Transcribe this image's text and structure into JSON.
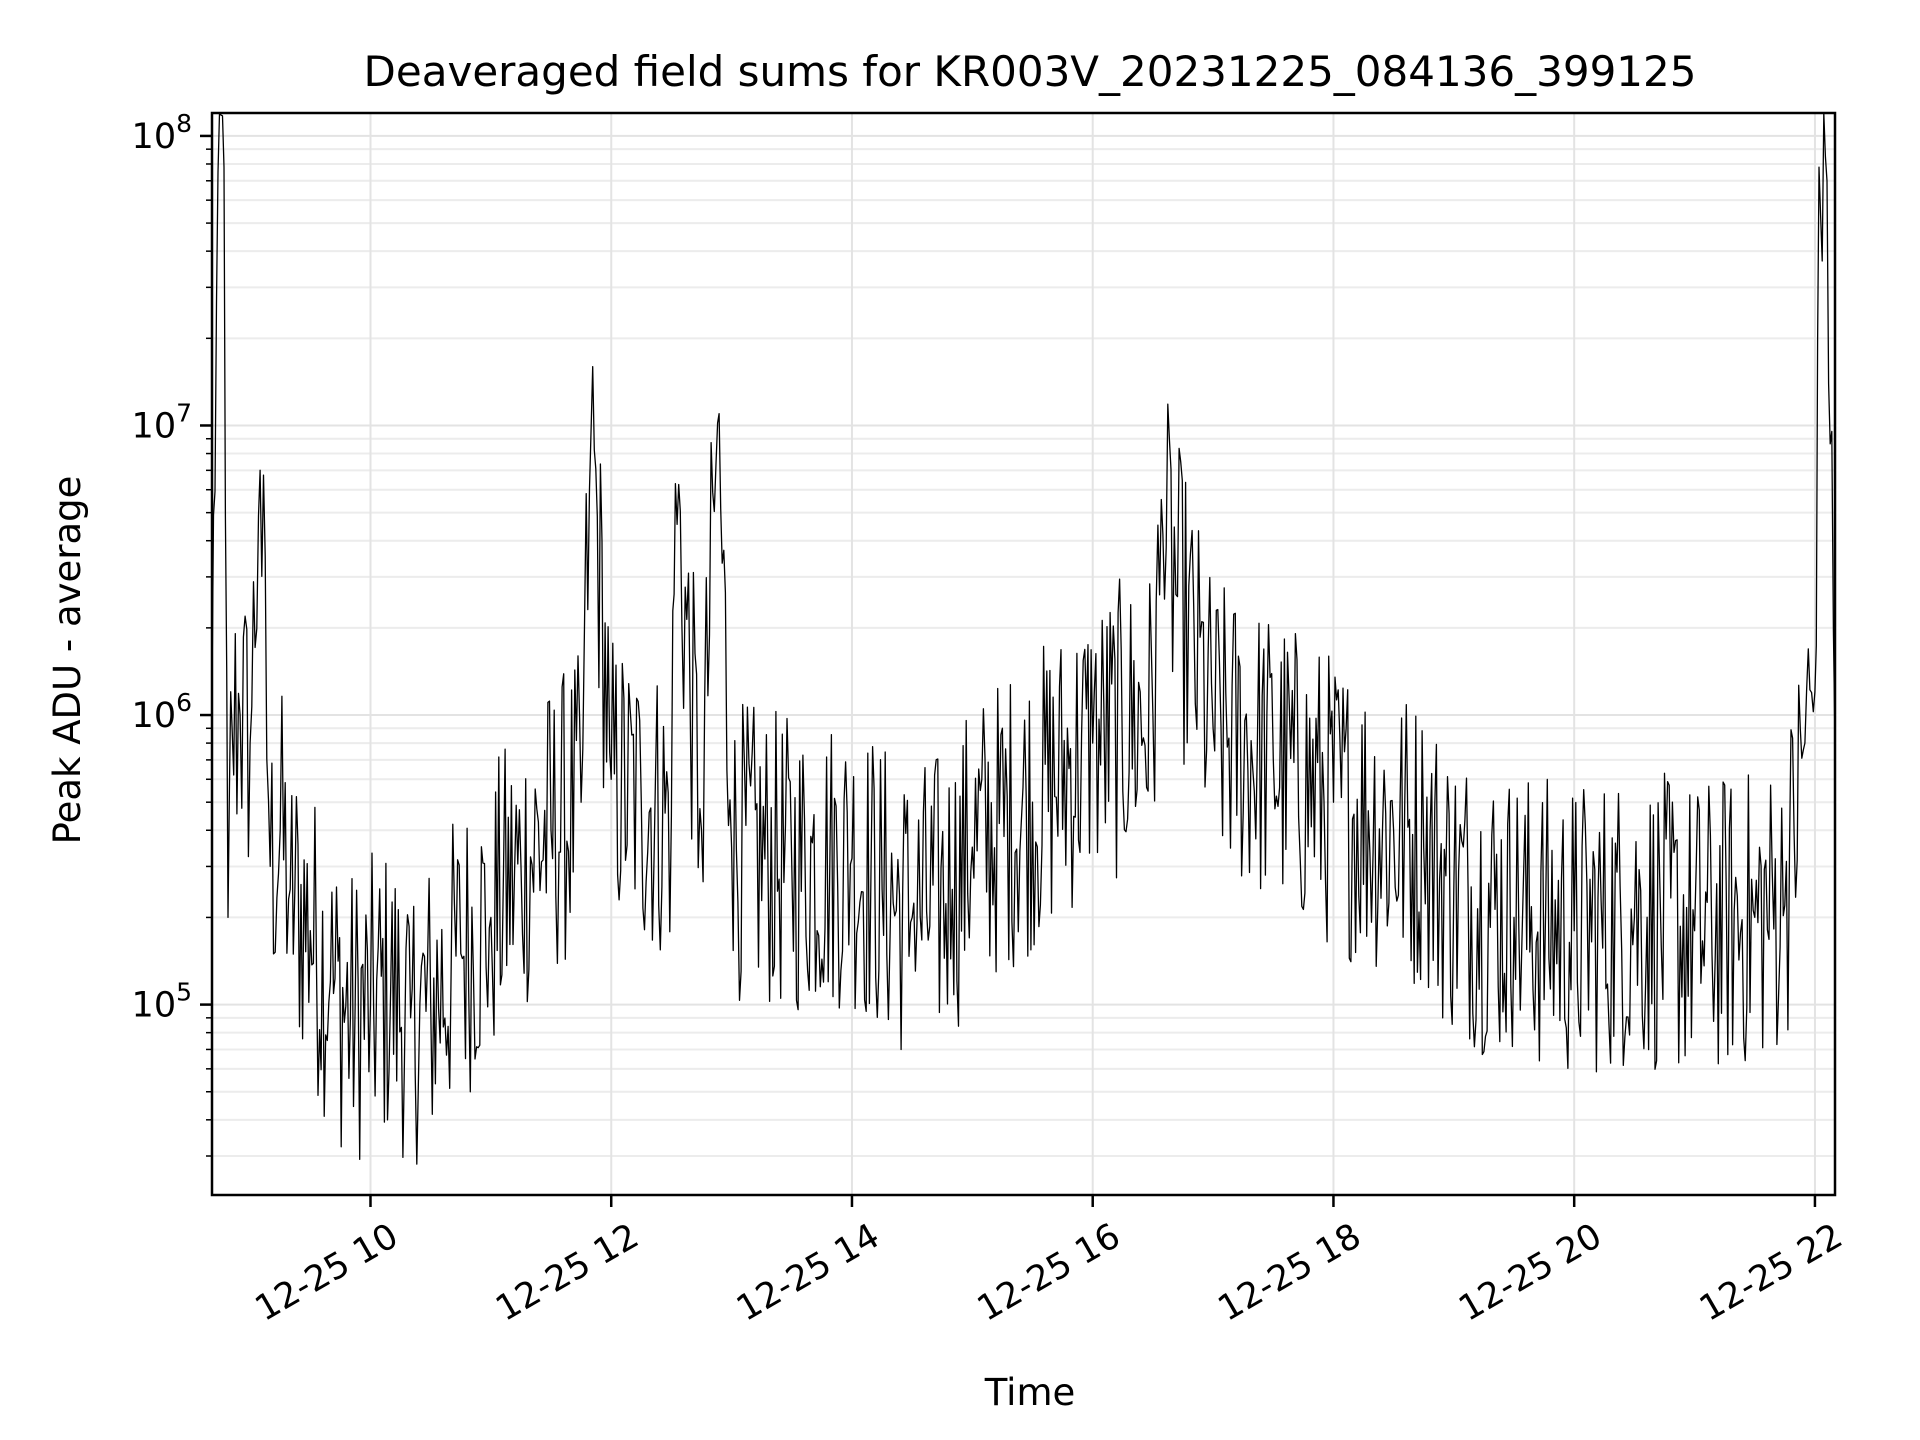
{
  "chart_data": {
    "type": "line",
    "title": "Deaveraged field sums for KR003V_20231225_084136_399125",
    "xlabel": "Time",
    "ylabel": "Peak ADU - average",
    "y_scale": "log",
    "ylim": [
      22000,
      120000000
    ],
    "xlim": [
      "2023-12-25 08:41",
      "2023-12-25 22:10"
    ],
    "x_ticks": [
      {
        "value": "2023-12-25 10:00",
        "label": "12-25 10"
      },
      {
        "value": "2023-12-25 12:00",
        "label": "12-25 12"
      },
      {
        "value": "2023-12-25 14:00",
        "label": "12-25 14"
      },
      {
        "value": "2023-12-25 16:00",
        "label": "12-25 16"
      },
      {
        "value": "2023-12-25 18:00",
        "label": "12-25 18"
      },
      {
        "value": "2023-12-25 20:00",
        "label": "12-25 20"
      },
      {
        "value": "2023-12-25 22:00",
        "label": "12-25 22"
      }
    ],
    "y_ticks": [
      {
        "value": 100000,
        "base": "10",
        "exp": "5"
      },
      {
        "value": 1000000,
        "base": "10",
        "exp": "6"
      },
      {
        "value": 10000000,
        "base": "10",
        "exp": "7"
      },
      {
        "value": 100000000,
        "base": "10",
        "exp": "8"
      }
    ],
    "grid": true,
    "line_color": "#000000",
    "series": [
      {
        "x": [
          "2023-12-25 08:41",
          "2023-12-25 08:44",
          "2023-12-25 08:47",
          "2023-12-25 08:49",
          "2023-12-25 08:51",
          "2023-12-25 08:55",
          "2023-12-25 09:00",
          "2023-12-25 09:05",
          "2023-12-25 09:10",
          "2023-12-25 09:15",
          "2023-12-25 09:20",
          "2023-12-25 09:30",
          "2023-12-25 09:40",
          "2023-12-25 09:50",
          "2023-12-25 10:00",
          "2023-12-25 10:10",
          "2023-12-25 10:20",
          "2023-12-25 10:30",
          "2023-12-25 10:45",
          "2023-12-25 11:00",
          "2023-12-25 11:15",
          "2023-12-25 11:30",
          "2023-12-25 11:45",
          "2023-12-25 11:50",
          "2023-12-25 12:00",
          "2023-12-25 12:15",
          "2023-12-25 12:30",
          "2023-12-25 12:32",
          "2023-12-25 12:45",
          "2023-12-25 12:53",
          "2023-12-25 13:00",
          "2023-12-25 13:30",
          "2023-12-25 14:00",
          "2023-12-25 14:15",
          "2023-12-25 14:30",
          "2023-12-25 14:50",
          "2023-12-25 15:00",
          "2023-12-25 15:30",
          "2023-12-25 16:00",
          "2023-12-25 16:30",
          "2023-12-25 16:35",
          "2023-12-25 17:00",
          "2023-12-25 17:30",
          "2023-12-25 18:00",
          "2023-12-25 18:30",
          "2023-12-25 18:45",
          "2023-12-25 19:00",
          "2023-12-25 19:30",
          "2023-12-25 20:00",
          "2023-12-25 20:30",
          "2023-12-25 21:00",
          "2023-12-25 21:30",
          "2023-12-25 21:45",
          "2023-12-25 21:55",
          "2023-12-25 22:00",
          "2023-12-25 22:02",
          "2023-12-25 22:06",
          "2023-12-25 22:10"
        ],
        "y": [
          1200000,
          75000000,
          78000000,
          200000,
          900000,
          1000000,
          800000,
          7000000,
          300000,
          400000,
          250000,
          180000,
          120000,
          90000,
          100000,
          110000,
          90000,
          100000,
          150000,
          200000,
          300000,
          400000,
          500000,
          10000000,
          600000,
          500000,
          450000,
          6300000,
          400000,
          10200000,
          350000,
          300000,
          320000,
          250000,
          200000,
          250000,
          350000,
          500000,
          800000,
          1000000,
          4200000,
          900000,
          700000,
          500000,
          400000,
          350000,
          250000,
          200000,
          180000,
          200000,
          180000,
          200000,
          220000,
          800000,
          1200000,
          78000000,
          70000000,
          800000
        ]
      }
    ]
  }
}
